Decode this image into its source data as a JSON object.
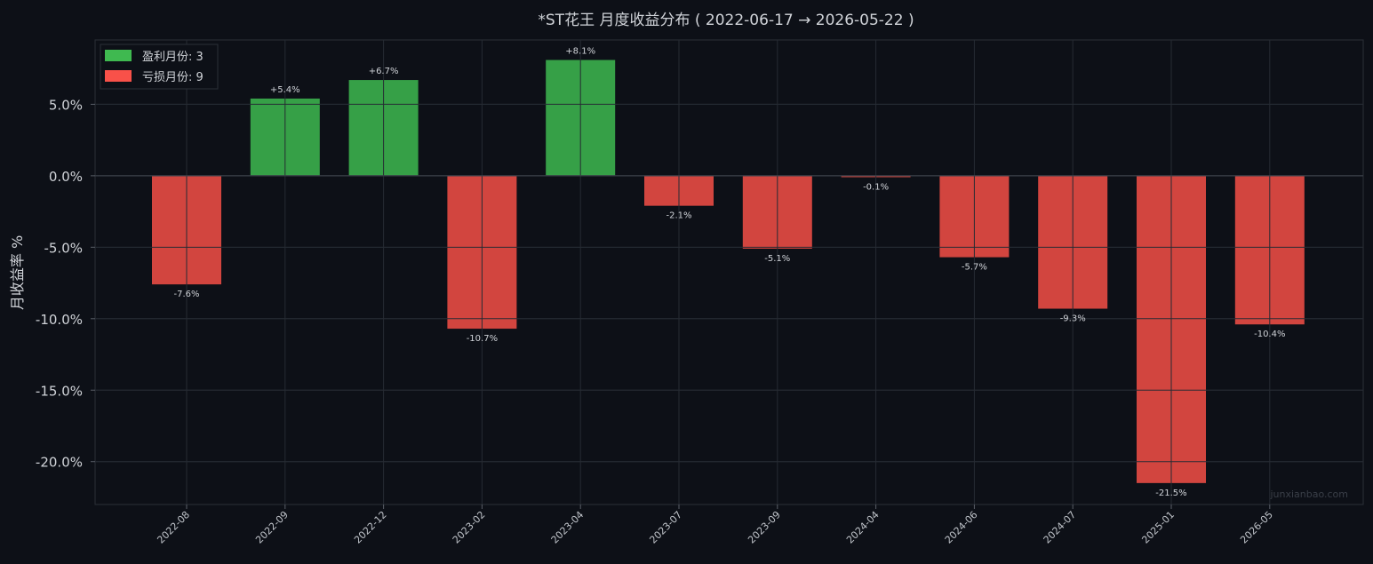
{
  "chart_data": {
    "type": "bar",
    "title": "*ST花王 月度收益分布 ( 2022-06-17 → 2026-05-22 )",
    "ylabel": "月收益率 %",
    "xlabel": "",
    "categories": [
      "2022-08",
      "2022-09",
      "2022-12",
      "2023-02",
      "2023-04",
      "2023-07",
      "2023-09",
      "2024-04",
      "2024-06",
      "2024-07",
      "2025-01",
      "2026-05"
    ],
    "values": [
      -7.6,
      5.4,
      6.7,
      -10.7,
      8.1,
      -2.1,
      -5.1,
      -0.1,
      -5.7,
      -9.3,
      -21.5,
      -10.4
    ],
    "data_labels": [
      "-7.6%",
      "+5.4%",
      "+6.7%",
      "-10.7%",
      "+8.1%",
      "-2.1%",
      "-5.1%",
      "-0.1%",
      "-5.7%",
      "-9.3%",
      "-21.5%",
      "-10.4%"
    ],
    "ylim": [
      -23.0,
      9.5
    ],
    "yticks": [
      5.0,
      0.0,
      -5.0,
      -10.0,
      -15.0,
      -20.0
    ],
    "ytick_labels": [
      "5.0%",
      "0.0%",
      "-5.0%",
      "-10.0%",
      "-15.0%",
      "-20.0%"
    ],
    "grid": true,
    "legend": {
      "placement": "top-left",
      "items": [
        {
          "label": "盈利月份: 3",
          "color": "#3fb950"
        },
        {
          "label": "亏损月份: 9",
          "color": "#f85149"
        }
      ]
    },
    "colors": {
      "positive": "#36a047",
      "negative": "#d2453f",
      "background": "#0d1017",
      "grid": "#262b33"
    },
    "watermark": "junxianbao.com"
  }
}
